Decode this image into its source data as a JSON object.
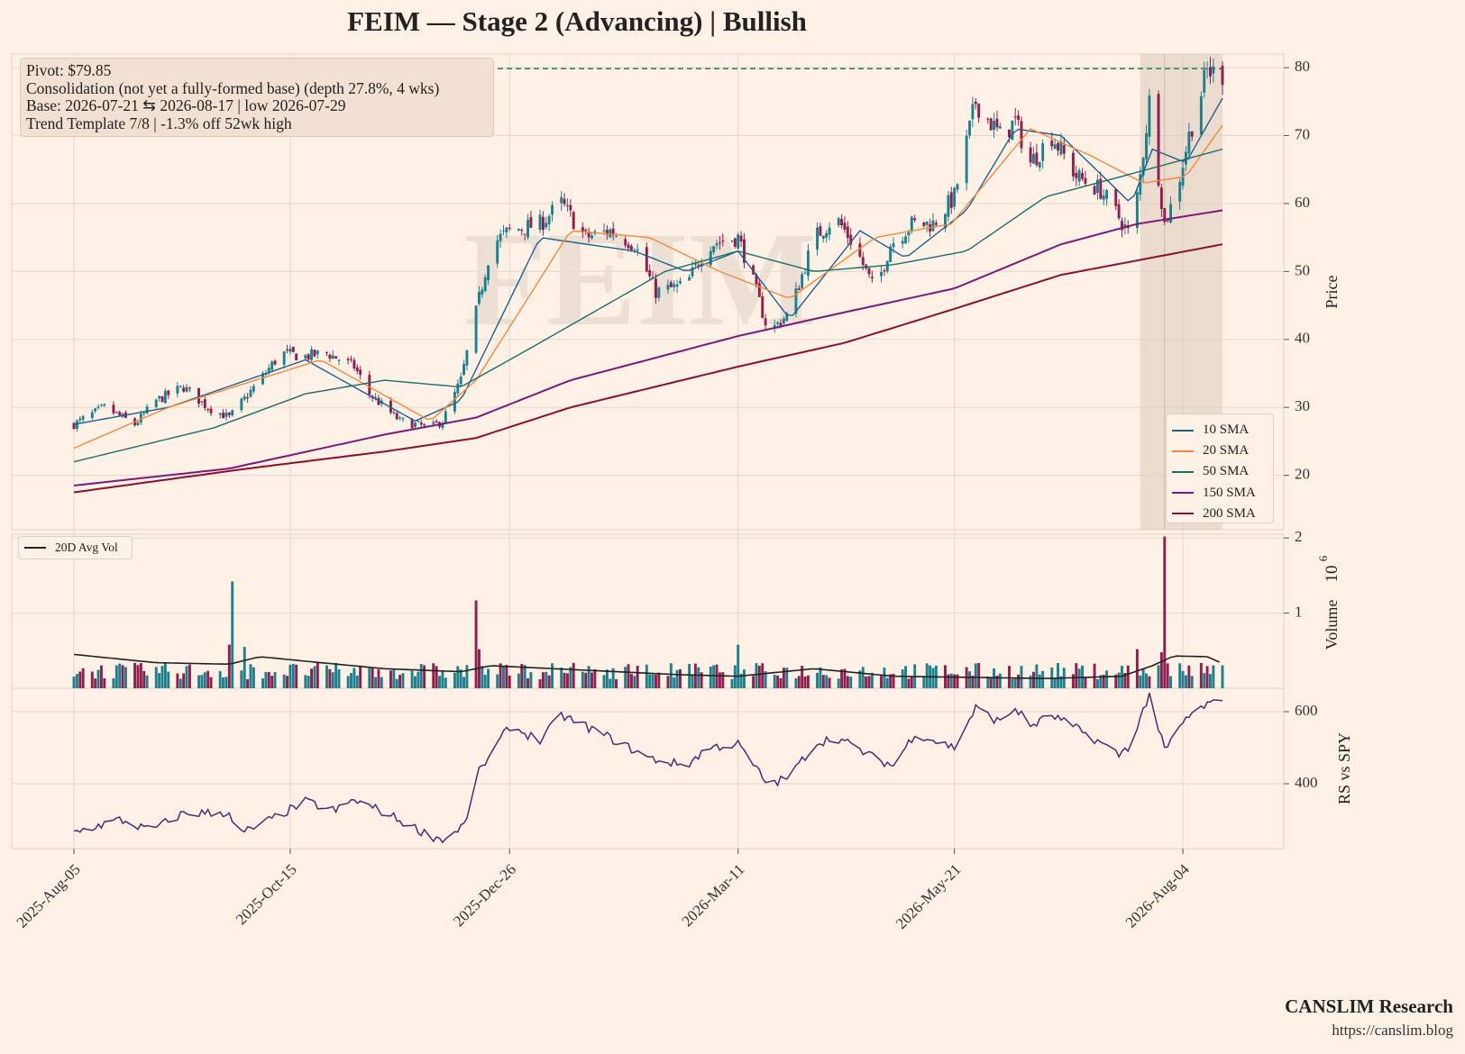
{
  "title": "FEIM  —  Stage 2 (Advancing)  |  Bullish",
  "watermark": "FEIM",
  "info_box": {
    "line1": "Pivot: $79.85",
    "line2": "Consolidation (not yet a fully-formed base)  (depth 27.8%, 4 wks)",
    "line3": "Base: 2026-07-21 ⇆ 2026-08-17  |  low 2026-07-29",
    "line4": "Trend Template 7/8  |  -1.3% off 52wk high"
  },
  "footer": {
    "brand": "CANSLIM Research",
    "url": "https://canslim.blog"
  },
  "colors": {
    "background": "#fdf1e6",
    "grid": "#e6dcd3",
    "up_candle": "#1f7f8c",
    "down_candle": "#8e1f4e",
    "pivot_line": "#2e8b57",
    "base_shade": "#d8c3b4",
    "rs_line": "#4b2c70",
    "avg_vol": "#222222"
  },
  "chart_data": [
    {
      "type": "candlestick",
      "panel": "price",
      "ylabel": "Price",
      "ylim": [
        12,
        82
      ],
      "yticks": [
        20,
        30,
        40,
        50,
        60,
        70,
        80
      ],
      "grid": true,
      "pivot": 79.85,
      "base_start_date": "2026-07-21",
      "base_end_date": "2026-08-17",
      "base_low_date": "2026-07-29",
      "legend_position": "lower-right",
      "anchors": [
        [
          "2025-08-05",
          27.5
        ],
        [
          "2025-08-15",
          30
        ],
        [
          "2025-08-25",
          27.5
        ],
        [
          "2025-09-01",
          31
        ],
        [
          "2025-09-10",
          33
        ],
        [
          "2025-09-18",
          30
        ],
        [
          "2025-09-25",
          28.5
        ],
        [
          "2025-10-05",
          34
        ],
        [
          "2025-10-12",
          38
        ],
        [
          "2025-10-20",
          37.5
        ],
        [
          "2025-10-27",
          38
        ],
        [
          "2025-11-05",
          36
        ],
        [
          "2025-11-10",
          32
        ],
        [
          "2025-11-20",
          28
        ],
        [
          "2025-11-30",
          27
        ],
        [
          "2025-12-04",
          28
        ],
        [
          "2025-12-10",
          34
        ],
        [
          "2025-12-15",
          44
        ],
        [
          "2025-12-20",
          54
        ],
        [
          "2025-12-26",
          56
        ],
        [
          "2026-01-05",
          57
        ],
        [
          "2026-01-12",
          60
        ],
        [
          "2026-01-20",
          55
        ],
        [
          "2026-01-28",
          56
        ],
        [
          "2026-02-05",
          54
        ],
        [
          "2026-02-12",
          47
        ],
        [
          "2026-02-22",
          48
        ],
        [
          "2026-03-01",
          54
        ],
        [
          "2026-03-11",
          55
        ],
        [
          "2026-03-15",
          50
        ],
        [
          "2026-03-21",
          41
        ],
        [
          "2026-03-28",
          44
        ],
        [
          "2026-04-05",
          55
        ],
        [
          "2026-04-12",
          58
        ],
        [
          "2026-04-18",
          54
        ],
        [
          "2026-04-25",
          47
        ],
        [
          "2026-04-30",
          54
        ],
        [
          "2026-05-07",
          57
        ],
        [
          "2026-05-14",
          57
        ],
        [
          "2026-05-21",
          61
        ],
        [
          "2026-05-28",
          75
        ],
        [
          "2026-06-05",
          70
        ],
        [
          "2026-06-10",
          72
        ],
        [
          "2026-06-15",
          66
        ],
        [
          "2026-06-22",
          70
        ],
        [
          "2026-06-30",
          64
        ],
        [
          "2026-07-08",
          62
        ],
        [
          "2026-07-14",
          58
        ],
        [
          "2026-07-18",
          55
        ],
        [
          "2026-07-21",
          64
        ],
        [
          "2026-07-24",
          75
        ],
        [
          "2026-07-29",
          57
        ],
        [
          "2026-08-02",
          62
        ],
        [
          "2026-08-06",
          70
        ],
        [
          "2026-08-12",
          79.5
        ],
        [
          "2026-08-17",
          79
        ]
      ],
      "moving_averages": [
        {
          "name": "10 SMA",
          "color": "#1f5f8f",
          "points": [
            [
              "2025-08-05",
              27.5
            ],
            [
              "2025-09-05",
              30
            ],
            [
              "2025-10-20",
              37
            ],
            [
              "2025-11-25",
              28
            ],
            [
              "2025-12-10",
              31
            ],
            [
              "2026-01-05",
              55
            ],
            [
              "2026-02-05",
              53
            ],
            [
              "2026-02-22",
              50
            ],
            [
              "2026-03-11",
              53
            ],
            [
              "2026-03-28",
              43
            ],
            [
              "2026-04-20",
              56
            ],
            [
              "2026-05-05",
              52
            ],
            [
              "2026-05-25",
              59
            ],
            [
              "2026-06-10",
              71
            ],
            [
              "2026-06-25",
              70
            ],
            [
              "2026-07-18",
              60
            ],
            [
              "2026-07-25",
              68
            ],
            [
              "2026-08-05",
              66
            ],
            [
              "2026-08-17",
              75.5
            ]
          ]
        },
        {
          "name": "20 SMA",
          "color": "#f0883e",
          "points": [
            [
              "2025-08-05",
              24
            ],
            [
              "2025-09-05",
              30
            ],
            [
              "2025-10-25",
              37
            ],
            [
              "2025-11-30",
              28
            ],
            [
              "2025-12-15",
              34
            ],
            [
              "2026-01-15",
              56
            ],
            [
              "2026-02-10",
              55
            ],
            [
              "2026-03-05",
              50
            ],
            [
              "2026-03-28",
              46
            ],
            [
              "2026-04-25",
              55
            ],
            [
              "2026-05-20",
              57
            ],
            [
              "2026-06-15",
              71
            ],
            [
              "2026-07-05",
              67
            ],
            [
              "2026-07-22",
              63
            ],
            [
              "2026-08-05",
              64
            ],
            [
              "2026-08-17",
              71.5
            ]
          ]
        },
        {
          "name": "50 SMA",
          "color": "#1a6e6e",
          "points": [
            [
              "2025-08-05",
              22
            ],
            [
              "2025-09-20",
              27
            ],
            [
              "2025-10-20",
              32
            ],
            [
              "2025-11-15",
              34
            ],
            [
              "2025-12-10",
              33
            ],
            [
              "2025-12-30",
              38
            ],
            [
              "2026-02-15",
              50
            ],
            [
              "2026-03-11",
              53
            ],
            [
              "2026-04-05",
              50
            ],
            [
              "2026-05-01",
              51
            ],
            [
              "2026-05-25",
              53
            ],
            [
              "2026-06-20",
              61
            ],
            [
              "2026-07-15",
              64
            ],
            [
              "2026-08-17",
              68
            ]
          ]
        },
        {
          "name": "150 SMA",
          "color": "#7a1a7a",
          "points": [
            [
              "2025-08-05",
              18.5
            ],
            [
              "2025-09-25",
              21
            ],
            [
              "2025-11-15",
              26
            ],
            [
              "2025-12-15",
              28.5
            ],
            [
              "2026-01-15",
              34
            ],
            [
              "2026-03-11",
              40.5
            ],
            [
              "2026-04-15",
              44
            ],
            [
              "2026-05-21",
              47.5
            ],
            [
              "2026-06-25",
              54
            ],
            [
              "2026-07-20",
              57
            ],
            [
              "2026-08-17",
              59
            ]
          ]
        },
        {
          "name": "200 SMA",
          "color": "#8a1030",
          "points": [
            [
              "2025-08-05",
              17.5
            ],
            [
              "2025-10-01",
              21
            ],
            [
              "2025-11-15",
              23.5
            ],
            [
              "2025-12-15",
              25.5
            ],
            [
              "2026-01-15",
              30
            ],
            [
              "2026-03-11",
              36
            ],
            [
              "2026-04-15",
              39.5
            ],
            [
              "2026-05-21",
              44.5
            ],
            [
              "2026-06-25",
              49.5
            ],
            [
              "2026-08-17",
              54
            ]
          ]
        }
      ]
    },
    {
      "type": "bar",
      "panel": "volume",
      "ylabel": "Volume",
      "ylabel_exponent": "10",
      "ylabel_exponent_power": "6",
      "ylim": [
        0,
        2.05
      ],
      "yticks": [
        1,
        2
      ],
      "unit_multiplier": 1000000,
      "legend": "20D Avg Vol",
      "legend_position": "top-left",
      "spikes": [
        [
          "2025-09-26",
          1.42
        ],
        [
          "2025-09-25",
          0.58
        ],
        [
          "2025-09-30",
          0.55
        ],
        [
          "2025-12-15",
          1.17
        ],
        [
          "2025-12-16",
          0.52
        ],
        [
          "2026-03-11",
          0.58
        ],
        [
          "2026-07-18",
          1.1
        ],
        [
          "2026-07-20",
          0.52
        ],
        [
          "2026-07-29",
          2.02
        ],
        [
          "2026-07-28",
          0.48
        ]
      ],
      "avg_vol_points": [
        [
          "2025-08-05",
          0.45
        ],
        [
          "2025-09-01",
          0.34
        ],
        [
          "2025-09-25",
          0.32
        ],
        [
          "2025-10-05",
          0.42
        ],
        [
          "2025-10-20",
          0.36
        ],
        [
          "2025-11-15",
          0.26
        ],
        [
          "2025-12-10",
          0.22
        ],
        [
          "2025-12-20",
          0.3
        ],
        [
          "2026-01-20",
          0.24
        ],
        [
          "2026-02-20",
          0.18
        ],
        [
          "2026-03-11",
          0.16
        ],
        [
          "2026-04-05",
          0.26
        ],
        [
          "2026-05-01",
          0.16
        ],
        [
          "2026-06-20",
          0.13
        ],
        [
          "2026-07-15",
          0.16
        ],
        [
          "2026-07-25",
          0.3
        ],
        [
          "2026-08-01",
          0.43
        ],
        [
          "2026-08-12",
          0.42
        ],
        [
          "2026-08-17",
          0.33
        ]
      ]
    },
    {
      "type": "line",
      "panel": "rs",
      "ylabel": "RS vs SPY",
      "ylim": [
        220,
        665
      ],
      "yticks": [
        400,
        600
      ],
      "anchors": [
        [
          "2025-08-05",
          265
        ],
        [
          "2025-08-20",
          300
        ],
        [
          "2025-08-30",
          270
        ],
        [
          "2025-09-10",
          318
        ],
        [
          "2025-09-25",
          320
        ],
        [
          "2025-09-27",
          255
        ],
        [
          "2025-10-05",
          285
        ],
        [
          "2025-10-20",
          350
        ],
        [
          "2025-10-30",
          325
        ],
        [
          "2025-11-05",
          355
        ],
        [
          "2025-11-15",
          320
        ],
        [
          "2025-11-30",
          255
        ],
        [
          "2025-12-05",
          245
        ],
        [
          "2025-12-12",
          295
        ],
        [
          "2025-12-15",
          420
        ],
        [
          "2025-12-26",
          560
        ],
        [
          "2026-01-05",
          520
        ],
        [
          "2026-01-12",
          590
        ],
        [
          "2026-01-25",
          540
        ],
        [
          "2026-02-10",
          470
        ],
        [
          "2026-02-22",
          450
        ],
        [
          "2026-03-01",
          500
        ],
        [
          "2026-03-11",
          510
        ],
        [
          "2026-03-21",
          395
        ],
        [
          "2026-03-28",
          420
        ],
        [
          "2026-04-05",
          510
        ],
        [
          "2026-04-12",
          530
        ],
        [
          "2026-04-25",
          470
        ],
        [
          "2026-05-01",
          450
        ],
        [
          "2026-05-08",
          540
        ],
        [
          "2026-05-21",
          500
        ],
        [
          "2026-05-28",
          610
        ],
        [
          "2026-06-05",
          570
        ],
        [
          "2026-06-10",
          610
        ],
        [
          "2026-06-15",
          560
        ],
        [
          "2026-06-22",
          590
        ],
        [
          "2026-07-05",
          530
        ],
        [
          "2026-07-14",
          480
        ],
        [
          "2026-07-18",
          510
        ],
        [
          "2026-07-24",
          650
        ],
        [
          "2026-07-29",
          490
        ],
        [
          "2026-08-05",
          580
        ],
        [
          "2026-08-12",
          620
        ],
        [
          "2026-08-17",
          625
        ]
      ]
    }
  ],
  "x_axis": {
    "start_date": "2025-08-05",
    "end_date": "2026-08-17",
    "tick_labels": [
      "2025-Aug-05",
      "2025-Oct-15",
      "2025-Dec-26",
      "2026-Mar-11",
      "2026-May-21",
      "2026-Aug-04"
    ],
    "tick_dates": [
      "2025-08-05",
      "2025-10-15",
      "2025-12-26",
      "2026-03-11",
      "2026-05-21",
      "2026-08-04"
    ]
  }
}
